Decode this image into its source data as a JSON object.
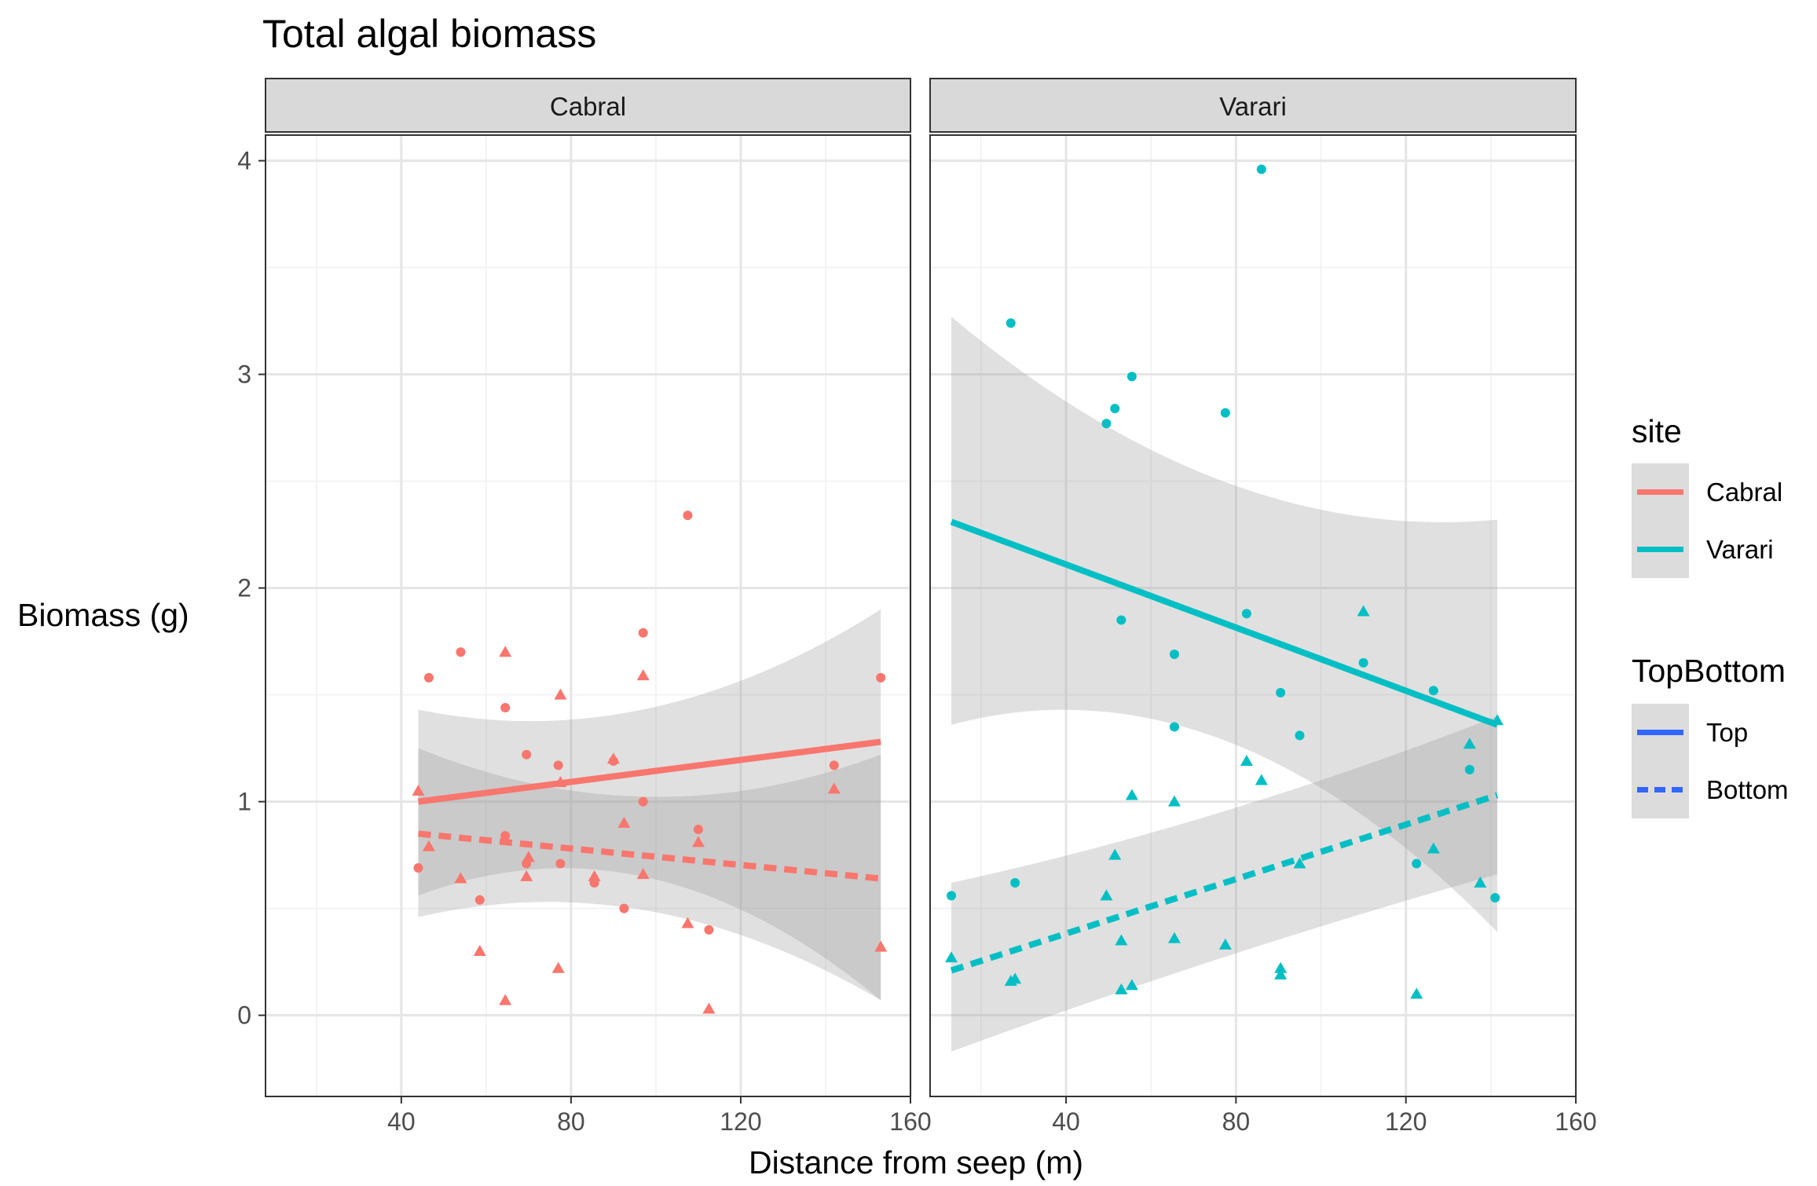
{
  "chart_data": {
    "type": "scatter",
    "title": "Total algal biomass",
    "xlabel": "Distance from seep (m)",
    "ylabel": "Biomass (g)",
    "xlim": [
      8,
      160
    ],
    "ylim": [
      -0.38,
      4.12
    ],
    "x_ticks": [
      40,
      80,
      120,
      160
    ],
    "y_ticks": [
      0,
      1,
      2,
      3,
      4
    ],
    "x_tick_labels": [
      "40",
      "80",
      "120",
      "160"
    ],
    "y_tick_labels": [
      "0",
      "1",
      "2",
      "3",
      "4"
    ],
    "grid": true,
    "legend_position": "right",
    "colors": {
      "Cabral": "#F8766D",
      "Varari": "#00BFC4",
      "Top": "#3366FF",
      "Bottom": "#3366FF"
    },
    "legends": [
      {
        "title": "site",
        "entries": [
          "Cabral",
          "Varari"
        ]
      },
      {
        "title": "TopBottom",
        "entries": [
          "Top",
          "Bottom"
        ]
      }
    ],
    "panels": [
      {
        "label": "Cabral",
        "color": "#F8766D",
        "points_top": [
          [
            44,
            0.69
          ],
          [
            46.5,
            1.58
          ],
          [
            54,
            1.7
          ],
          [
            58.5,
            0.54
          ],
          [
            64.5,
            1.44
          ],
          [
            64.5,
            0.84
          ],
          [
            69.5,
            1.22
          ],
          [
            69.5,
            0.71
          ],
          [
            77,
            1.17
          ],
          [
            77.5,
            0.71
          ],
          [
            85.5,
            0.62
          ],
          [
            90,
            1.19
          ],
          [
            92.5,
            0.5
          ],
          [
            97,
            1.79
          ],
          [
            97,
            1.0
          ],
          [
            107.5,
            2.34
          ],
          [
            110,
            0.87
          ],
          [
            112.5,
            0.4
          ],
          [
            142,
            1.17
          ],
          [
            153,
            1.58
          ]
        ],
        "points_bottom": [
          [
            44,
            1.05
          ],
          [
            46.5,
            0.79
          ],
          [
            54,
            0.64
          ],
          [
            58.5,
            0.3
          ],
          [
            64.5,
            1.7
          ],
          [
            64.5,
            0.07
          ],
          [
            69.5,
            0.65
          ],
          [
            70,
            0.74
          ],
          [
            77,
            0.22
          ],
          [
            77.5,
            1.5
          ],
          [
            77.5,
            1.09
          ],
          [
            85.5,
            0.65
          ],
          [
            90,
            1.2
          ],
          [
            92.5,
            0.9
          ],
          [
            97,
            1.59
          ],
          [
            97,
            0.66
          ],
          [
            107.5,
            0.43
          ],
          [
            110,
            0.81
          ],
          [
            112.5,
            0.03
          ],
          [
            142,
            1.06
          ],
          [
            153,
            0.32
          ]
        ],
        "fit_top": {
          "x": [
            44,
            153
          ],
          "y": [
            1.0,
            1.28
          ],
          "ci_lower": [
            0.56,
            0.07
          ],
          "ci_upper": [
            1.43,
            1.9
          ],
          "ci_mid": [
            0.97,
            1.21
          ]
        },
        "fit_bottom": {
          "x": [
            44,
            153
          ],
          "y": [
            0.85,
            0.64
          ],
          "ci_lower": [
            0.46,
            0.07
          ],
          "ci_upper": [
            1.25,
            1.22
          ],
          "ci_mid": [
            0.71,
            0.81
          ]
        }
      },
      {
        "label": "Varari",
        "color": "#00BFC4",
        "points_top": [
          [
            13,
            0.56
          ],
          [
            27,
            3.24
          ],
          [
            28,
            0.62
          ],
          [
            49.5,
            2.77
          ],
          [
            51.5,
            2.84
          ],
          [
            53,
            1.85
          ],
          [
            55.5,
            2.99
          ],
          [
            65.5,
            1.69
          ],
          [
            65.5,
            1.35
          ],
          [
            77.5,
            2.82
          ],
          [
            82.5,
            1.88
          ],
          [
            86,
            3.96
          ],
          [
            90.5,
            1.51
          ],
          [
            95,
            1.31
          ],
          [
            110,
            1.65
          ],
          [
            122.5,
            0.71
          ],
          [
            126.5,
            1.52
          ],
          [
            135,
            1.15
          ],
          [
            141,
            0.55
          ]
        ],
        "points_bottom": [
          [
            13,
            0.27
          ],
          [
            27,
            0.16
          ],
          [
            28,
            0.17
          ],
          [
            49.5,
            0.56
          ],
          [
            51.5,
            0.75
          ],
          [
            53,
            0.35
          ],
          [
            53,
            0.12
          ],
          [
            55.5,
            0.14
          ],
          [
            55.5,
            1.03
          ],
          [
            65.5,
            1.0
          ],
          [
            65.5,
            0.36
          ],
          [
            77.5,
            0.33
          ],
          [
            82.5,
            1.19
          ],
          [
            86,
            1.1
          ],
          [
            90.5,
            0.22
          ],
          [
            90.5,
            0.19
          ],
          [
            95,
            0.71
          ],
          [
            110,
            1.89
          ],
          [
            122.5,
            0.1
          ],
          [
            126.5,
            0.78
          ],
          [
            135,
            1.27
          ],
          [
            137.5,
            0.62
          ],
          [
            141.5,
            1.38
          ]
        ],
        "fit_top": {
          "x": [
            13,
            141.5
          ],
          "y": [
            2.31,
            1.36
          ],
          "ci_lower": [
            1.36,
            0.39
          ],
          "ci_upper": [
            3.27,
            2.32
          ],
          "ci_mid": [
            1.7,
            2.2
          ]
        },
        "fit_bottom": {
          "x": [
            13,
            141.5
          ],
          "y": [
            0.21,
            1.03
          ],
          "ci_lower": [
            -0.17,
            0.66
          ],
          "ci_upper": [
            0.62,
            1.4
          ],
          "ci_mid": [
            0.3,
            0.9
          ]
        }
      }
    ]
  }
}
